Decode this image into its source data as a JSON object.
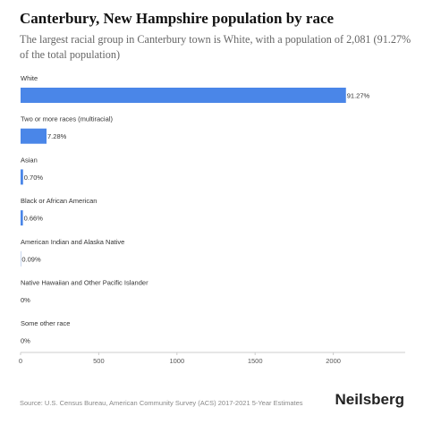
{
  "header": {
    "title": "Canterbury, New Hampshire population by race",
    "subtitle": "The largest racial group in Canterbury town is White, with a population of 2,081 (91.27% of the total population)"
  },
  "footer": {
    "source": "Source: U.S. Census Bureau, American Community Survey (ACS) 2017-2021 5-Year Estimates",
    "brand": "Neilsberg"
  },
  "chart_data": {
    "type": "bar",
    "orientation": "horizontal",
    "categories": [
      "White",
      "Two or more races (multiracial)",
      "Asian",
      "Black or African American",
      "American Indian and Alaska Native",
      "Native Hawaiian and Other Pacific Islander",
      "Some other race"
    ],
    "values": [
      2081,
      166,
      16,
      15,
      2,
      0,
      0
    ],
    "labels": [
      "91.27%",
      "7.28%",
      "0.70%",
      "0.66%",
      "0.09%",
      "0%",
      "0%"
    ],
    "xticks": [
      "0",
      "500",
      "1000",
      "1500",
      "2000"
    ],
    "xlim": [
      0,
      2460
    ],
    "bar_color": "#4a86e8",
    "grid": false
  }
}
